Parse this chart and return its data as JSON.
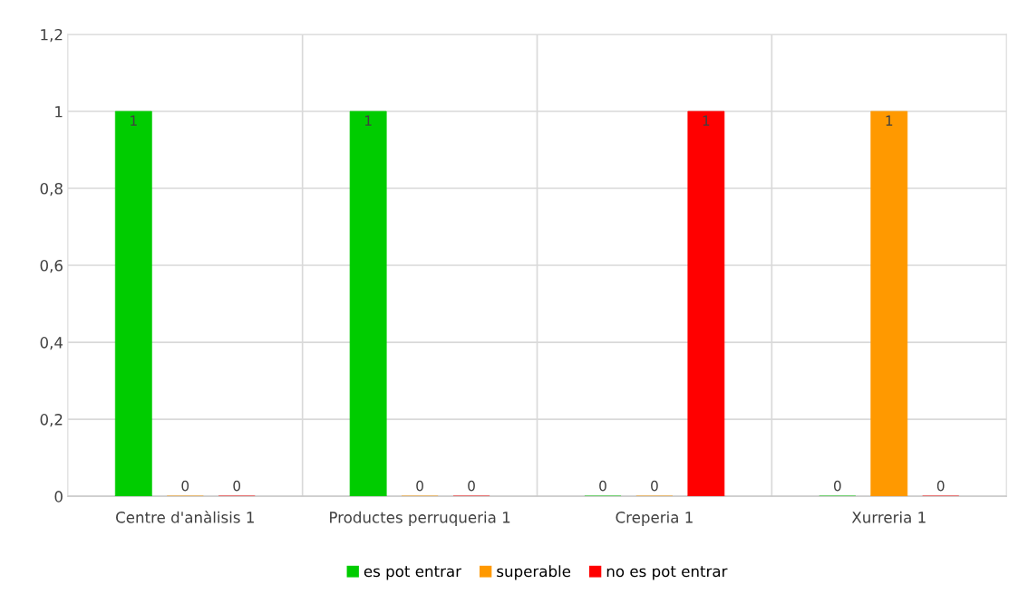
{
  "chart_data": {
    "type": "bar",
    "categories": [
      "Centre d'anàlisis 1",
      "Productes perruqueria 1",
      "Creperia 1",
      "Xurreria 1"
    ],
    "series": [
      {
        "name": "es pot entrar",
        "color": "#00cc00",
        "values": [
          1,
          1,
          0,
          0
        ]
      },
      {
        "name": "superable",
        "color": "#ff9900",
        "values": [
          0,
          0,
          0,
          1
        ]
      },
      {
        "name": "no es pot entrar",
        "color": "#ff0000",
        "values": [
          0,
          0,
          1,
          0
        ]
      }
    ],
    "ylim": [
      0,
      1.2
    ],
    "yticks": [
      0,
      {
        "value": 0.2,
        "label": "0,2"
      },
      {
        "value": 0.4,
        "label": "0,4"
      },
      {
        "value": 0.6,
        "label": "0,6"
      },
      {
        "value": 0.8,
        "label": "0,8"
      },
      1,
      {
        "value": 1.2,
        "label": "1,2"
      }
    ],
    "grid": true,
    "legend": "bottom",
    "data_labels": true
  }
}
